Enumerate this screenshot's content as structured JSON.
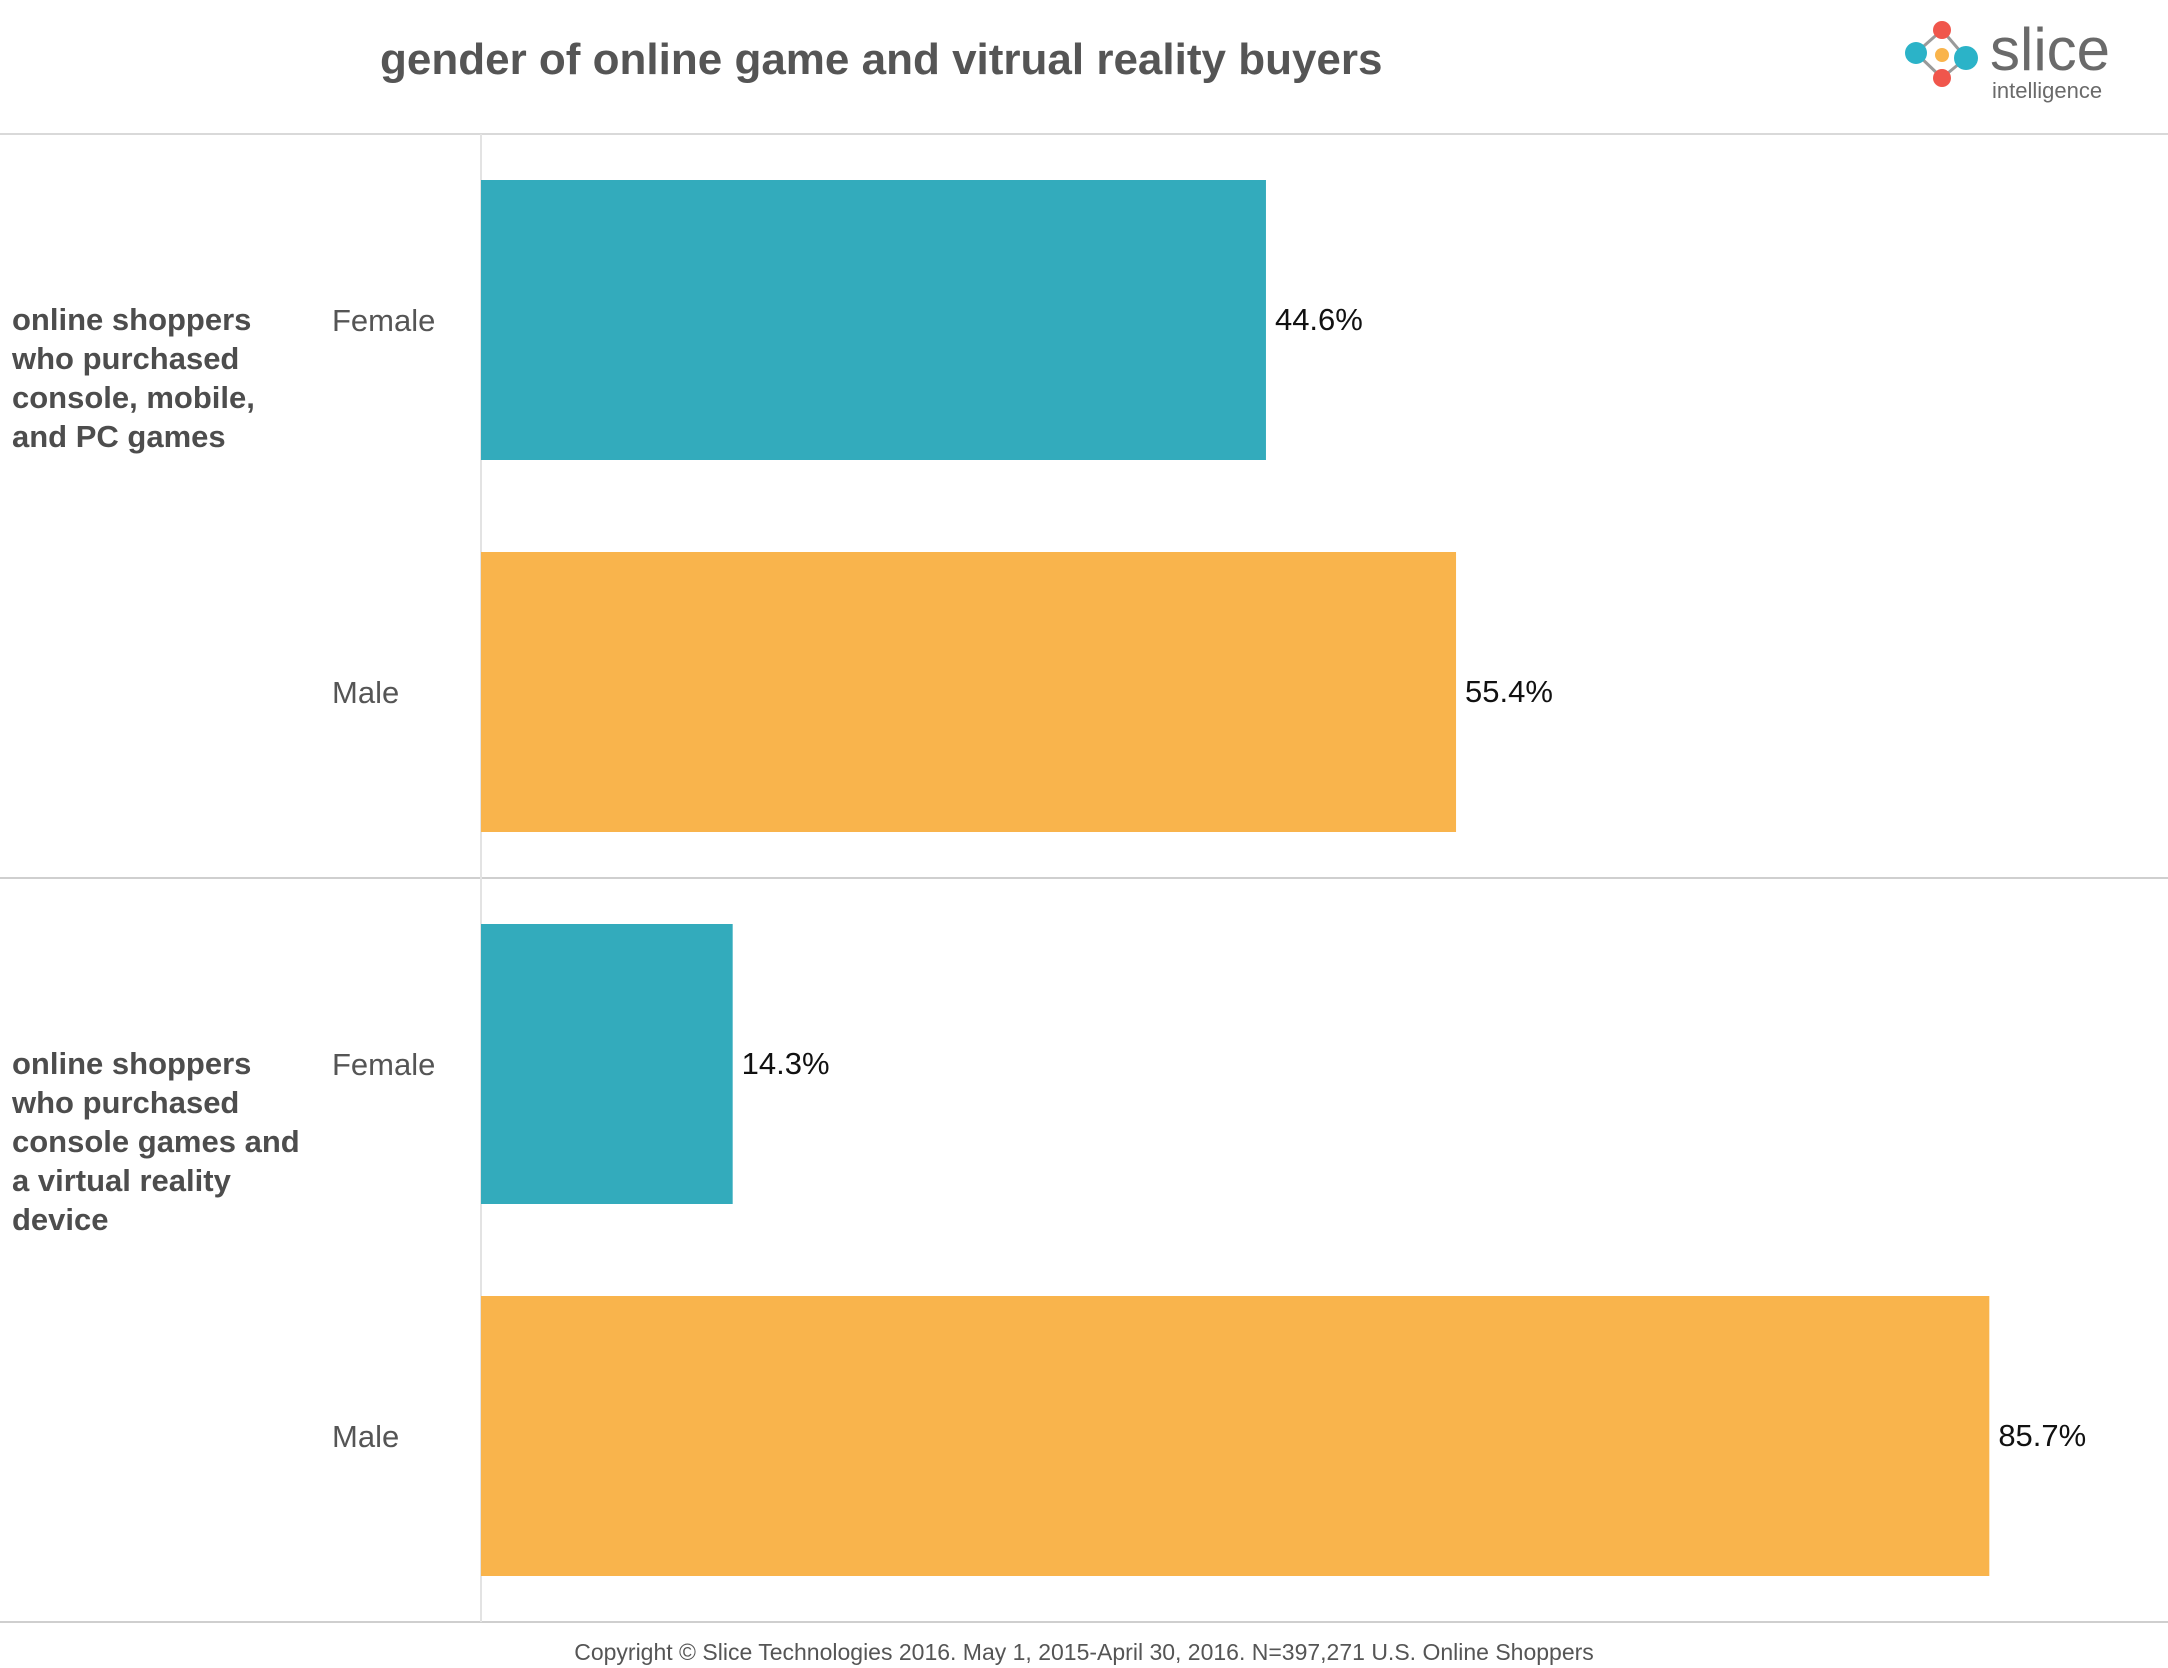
{
  "chart_data": {
    "type": "bar",
    "orientation": "horizontal",
    "title": "gender of online game and vitrual reality buyers",
    "xlim": [
      0,
      100
    ],
    "value_suffix": "%",
    "grid": false,
    "groups": [
      {
        "label_lines": [
          "online shoppers",
          "who purchased",
          "console, mobile,",
          "and PC games"
        ],
        "bars": [
          {
            "category": "Female",
            "value": 44.6,
            "display": "44.6%"
          },
          {
            "category": "Male",
            "value": 55.4,
            "display": "55.4%"
          }
        ]
      },
      {
        "label_lines": [
          "online shoppers",
          "who purchased",
          "console games and",
          "a virtual reality",
          "device"
        ],
        "bars": [
          {
            "category": "Female",
            "value": 14.3,
            "display": "14.3%"
          },
          {
            "category": "Male",
            "value": 85.7,
            "display": "85.7%"
          }
        ]
      }
    ],
    "colors": {
      "Female": "#33abbc",
      "Male": "#f9b44c"
    }
  },
  "logo": {
    "word": "slice",
    "sub": "intelligence",
    "colors": {
      "teal": "#2bb3c8",
      "red": "#f0564c",
      "orange": "#f9b44c"
    }
  },
  "footer": {
    "text": "Copyright © Slice Technologies 2016. May 1, 2015-April 30, 2016. N=397,271 U.S. Online Shoppers"
  }
}
